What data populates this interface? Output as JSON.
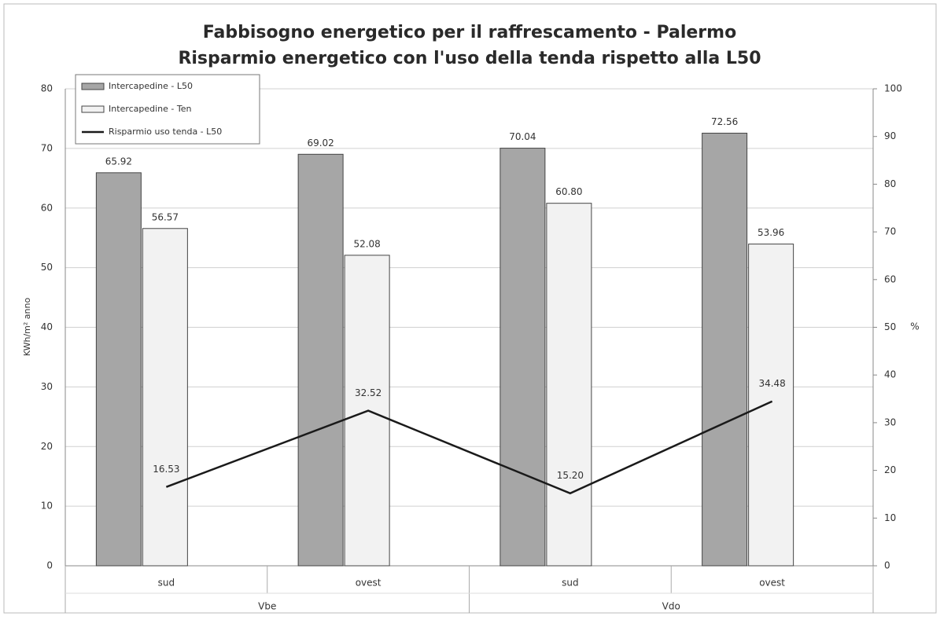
{
  "chart_data": {
    "type": "bar",
    "title": "Fabbisogno energetico per il raffrescamento - Palermo",
    "subtitle": "Risparmio energetico con l'uso della tenda rispetto alla L50",
    "y_label": "KWh/m² anno",
    "y2_label": "%",
    "categories": [
      "sud",
      "ovest",
      "sud",
      "ovest"
    ],
    "groups": [
      "Vbe",
      "Vdo"
    ],
    "series": [
      {
        "name": "Intercapedine - L50",
        "type": "bar",
        "color": "#a6a6a6",
        "values": [
          65.92,
          69.02,
          70.04,
          72.56
        ],
        "value_labels": [
          "65.92",
          "69.02",
          "70.04",
          "72.56"
        ]
      },
      {
        "name": "Intercapedine - Ten",
        "type": "bar",
        "color": "#f2f2f2",
        "values": [
          56.57,
          52.08,
          60.8,
          53.96
        ],
        "value_labels": [
          "56.57",
          "52.08",
          "60.80",
          "53.96"
        ]
      },
      {
        "name": "Risparmio uso tenda - L50",
        "type": "line",
        "axis": "y2",
        "color": "#1a1a1a",
        "values": [
          16.53,
          32.52,
          15.2,
          34.48
        ],
        "value_labels": [
          "16.53",
          "32.52",
          "15.20",
          "34.48"
        ]
      }
    ],
    "ylim": [
      0,
      80
    ],
    "yticks": [
      0,
      10,
      20,
      30,
      40,
      50,
      60,
      70,
      80
    ],
    "y2lim": [
      0,
      100
    ],
    "y2ticks": [
      0,
      10,
      20,
      30,
      40,
      50,
      60,
      70,
      80,
      90,
      100
    ],
    "grid": true,
    "legend": "upper left"
  }
}
